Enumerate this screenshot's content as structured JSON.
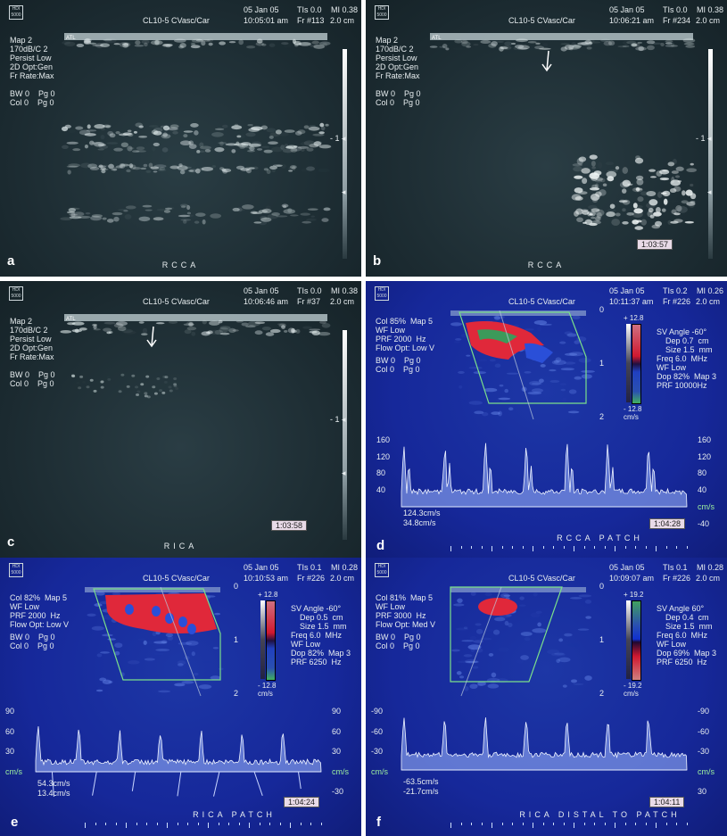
{
  "panels": [
    {
      "letter": "a",
      "mode": "bmode",
      "logo": "HDI 5000",
      "probe": "CL10-5 CVasc/Car",
      "date": "05 Jan 05",
      "time": "10:05:01 am",
      "tis": "TIs 0.0",
      "mi": "MI 0.38",
      "frame": "Fr #113",
      "depth": "2.0 cm",
      "left_params": [
        "Map 2",
        "170dB/C 2",
        "Persist Low",
        "2D Opt:Gen",
        "Fr Rate:Max",
        "",
        "BW 0    Pg 0",
        "Col 0    Pg 0"
      ],
      "label": "RCCA",
      "timer": "",
      "arrow": false
    },
    {
      "letter": "b",
      "mode": "bmode",
      "logo": "HDI 5000",
      "probe": "CL10-5 CVasc/Car",
      "date": "05 Jan 05",
      "time": "10:06:21 am",
      "tis": "TIs 0.0",
      "mi": "MI 0.38",
      "frame": "Fr #234",
      "depth": "2.0 cm",
      "left_params": [
        "Map 2",
        "170dB/C 2",
        "Persist Low",
        "2D Opt:Gen",
        "Fr Rate:Max",
        "",
        "BW 0    Pg 0",
        "Col 0    Pg 0"
      ],
      "label": "RCCA",
      "timer": "1:03:57",
      "arrow": true
    },
    {
      "letter": "c",
      "mode": "bmode",
      "logo": "HDI 5000",
      "probe": "CL10-5 CVasc/Car",
      "date": "05 Jan 05",
      "time": "10:06:46 am",
      "tis": "TIs 0.0",
      "mi": "MI 0.38",
      "frame": "Fr #37",
      "depth": "2.0 cm",
      "left_params": [
        "Map 2",
        "170dB/C 2",
        "Persist Low",
        "2D Opt:Gen",
        "Fr Rate:Max",
        "",
        "BW 0    Pg 0",
        "Col 0    Pg 0"
      ],
      "label": "RICA",
      "timer": "1:03:58",
      "arrow": true
    },
    {
      "letter": "d",
      "mode": "doppler",
      "logo": "HDI 5000",
      "probe": "CL10-5 CVasc/Car",
      "date": "05 Jan 05",
      "time": "10:11:37 am",
      "tis": "TIs 0.2",
      "mi": "MI 0.26",
      "frame": "Fr #226",
      "depth": "2.0 cm",
      "left_params": [
        "Col 85%  Map 5",
        "WF Low",
        "PRF 2000  Hz",
        "Flow Opt: Low V",
        "BW 0    Pg 0",
        "Col 0    Pg 0"
      ],
      "right_params": [
        "SV Angle -60°",
        "    Dep 0.7  cm",
        "    Size 1.5  mm",
        "Freq 6.0  MHz",
        "WF Low",
        "Dop 82%  Map 3",
        "PRF 10000Hz"
      ],
      "scale_top": "+ 12.8",
      "scale_bottom": "- 12.8",
      "scale_unit": "cm/s",
      "depth_ticks": [
        "0",
        "1",
        "2"
      ],
      "axis_left": [
        "160",
        "120",
        "80",
        "40"
      ],
      "axis_right": [
        "160",
        "120",
        "80",
        "40",
        "cm/s",
        "-40"
      ],
      "velocities": [
        "124.3cm/s",
        "34.8cm/s"
      ],
      "label": "RCCA     PATCH",
      "timer": "1:04:28",
      "color_map": "red-top"
    },
    {
      "letter": "e",
      "mode": "doppler",
      "logo": "HDI 5000",
      "probe": "CL10-5 CVasc/Car",
      "date": "05 Jan 05",
      "time": "10:10:53 am",
      "tis": "TIs 0.1",
      "mi": "MI 0.28",
      "frame": "Fr #226",
      "depth": "2.0 cm",
      "left_params": [
        "Col 82%  Map 5",
        "WF Low",
        "PRF 2000  Hz",
        "Flow Opt: Low V",
        "BW 0    Pg 0",
        "Col 0    Pg 0"
      ],
      "right_params": [
        "SV Angle -60°",
        "    Dep 0.5  cm",
        "    Size 1.5  mm",
        "Freq 6.0  MHz",
        "WF Low",
        "Dop 82%  Map 3",
        "PRF 6250  Hz"
      ],
      "scale_top": "+ 12.8",
      "scale_bottom": "- 12.8",
      "scale_unit": "cm/s",
      "depth_ticks": [
        "0",
        "1",
        "2"
      ],
      "axis_left": [
        "90",
        "60",
        "30",
        "cm/s"
      ],
      "axis_right": [
        "90",
        "60",
        "30",
        "cm/s",
        "-30"
      ],
      "velocities": [
        "54.3cm/s",
        "13.4cm/s"
      ],
      "label": "RICA          PATCH",
      "timer": "1:04:24",
      "color_map": "red-top"
    },
    {
      "letter": "f",
      "mode": "doppler",
      "logo": "HDI 5000",
      "probe": "CL10-5 CVasc/Car",
      "date": "05 Jan 05",
      "time": "10:09:07 am",
      "tis": "TIs 0.1",
      "mi": "MI 0.28",
      "frame": "Fr #226",
      "depth": "2.0 cm",
      "left_params": [
        "Col 81%  Map 5",
        "WF Low",
        "PRF 3000  Hz",
        "Flow Opt: Med V",
        "BW 0    Pg 0",
        "Col 0    Pg 0"
      ],
      "right_params": [
        "SV Angle 60°",
        "    Dep 0.4  cm",
        "    Size 1.5  mm",
        "Freq 6.0  MHz",
        "WF Low",
        "Dop 69%  Map 3",
        "PRF 6250  Hz"
      ],
      "scale_top": "+ 19.2",
      "scale_bottom": "- 19.2",
      "scale_unit": "cm/s",
      "depth_ticks": [
        "0",
        "1",
        "2"
      ],
      "axis_left": [
        "-90",
        "-60",
        "-30",
        "cm/s"
      ],
      "axis_right": [
        "-90",
        "-60",
        "-30",
        "cm/s",
        "30"
      ],
      "velocities": [
        "-63.5cm/s",
        "-21.7cm/s"
      ],
      "label": "RICA   DISTAL  TO  PATCH",
      "timer": "1:04:11",
      "color_map": "green-top"
    }
  ],
  "colors": {
    "bmode_bg": "#1b2a30",
    "doppler_bg": "#16289a",
    "flow_red": "#e0283a",
    "flow_blue": "#2a4fd8",
    "sample_box": "#7be08a",
    "timer_bg": "#e9dbe8"
  }
}
